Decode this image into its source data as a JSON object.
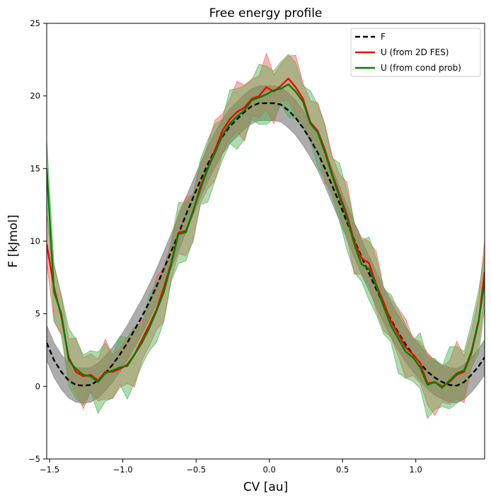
{
  "chart_data": {
    "type": "line",
    "title": "Free energy profile",
    "xlabel": "CV [au]",
    "ylabel": "F [kJmol]",
    "xlim": [
      -1.52,
      1.47
    ],
    "ylim": [
      -5,
      25
    ],
    "xticks": [
      -1.5,
      -1.0,
      -0.5,
      0.0,
      0.5,
      1.0
    ],
    "xtick_labels": [
      "−1.5",
      "−1.0",
      "−0.5",
      "0.0",
      "0.5",
      "1.0"
    ],
    "yticks": [
      -5,
      0,
      5,
      10,
      15,
      20,
      25
    ],
    "ytick_labels": [
      "−5",
      "0",
      "5",
      "10",
      "15",
      "20",
      "25"
    ],
    "legend_position": "top-right",
    "series": [
      {
        "name": "F",
        "style": "dashed",
        "color": "#000000",
        "band_color": "#808080",
        "x": [
          -1.52,
          -1.47,
          -1.42,
          -1.37,
          -1.32,
          -1.27,
          -1.22,
          -1.17,
          -1.12,
          -1.07,
          -1.02,
          -0.97,
          -0.92,
          -0.87,
          -0.82,
          -0.77,
          -0.72,
          -0.67,
          -0.62,
          -0.57,
          -0.52,
          -0.47,
          -0.42,
          -0.37,
          -0.32,
          -0.27,
          -0.22,
          -0.17,
          -0.12,
          -0.07,
          -0.02,
          0.03,
          0.08,
          0.13,
          0.18,
          0.23,
          0.28,
          0.33,
          0.38,
          0.43,
          0.48,
          0.53,
          0.58,
          0.63,
          0.68,
          0.73,
          0.78,
          0.83,
          0.88,
          0.93,
          0.98,
          1.03,
          1.08,
          1.13,
          1.18,
          1.23,
          1.28,
          1.33,
          1.38,
          1.43,
          1.47
        ],
        "y": [
          3.0,
          1.8,
          1.0,
          0.4,
          0.1,
          0.05,
          0.1,
          0.4,
          0.9,
          1.5,
          2.2,
          3.0,
          3.9,
          4.8,
          5.8,
          6.9,
          8.1,
          9.3,
          10.5,
          11.8,
          13.0,
          14.2,
          15.3,
          16.3,
          17.2,
          17.9,
          18.4,
          18.9,
          19.3,
          19.5,
          19.5,
          19.5,
          19.4,
          19.0,
          18.5,
          17.8,
          17.0,
          16.1,
          15.0,
          13.8,
          12.6,
          11.3,
          10.1,
          8.9,
          7.8,
          6.7,
          5.6,
          4.6,
          3.7,
          2.9,
          2.2,
          1.6,
          1.0,
          0.6,
          0.3,
          0.1,
          0.05,
          0.3,
          0.8,
          1.4,
          2.0
        ],
        "band": 1.2
      },
      {
        "name": "U (from 2D FES)",
        "style": "solid",
        "color": "#ff0000",
        "band_color": "#ff5555",
        "x": [
          -1.52,
          -1.47,
          -1.42,
          -1.37,
          -1.32,
          -1.27,
          -1.22,
          -1.17,
          -1.12,
          -1.07,
          -1.02,
          -0.97,
          -0.92,
          -0.87,
          -0.82,
          -0.77,
          -0.72,
          -0.67,
          -0.62,
          -0.57,
          -0.52,
          -0.47,
          -0.42,
          -0.37,
          -0.32,
          -0.27,
          -0.22,
          -0.17,
          -0.12,
          -0.07,
          -0.02,
          0.03,
          0.08,
          0.13,
          0.18,
          0.23,
          0.28,
          0.33,
          0.38,
          0.43,
          0.48,
          0.53,
          0.58,
          0.63,
          0.68,
          0.73,
          0.78,
          0.83,
          0.88,
          0.93,
          0.98,
          1.03,
          1.08,
          1.13,
          1.18,
          1.23,
          1.28,
          1.33,
          1.38,
          1.43,
          1.47
        ],
        "y": [
          9.8,
          6.8,
          4.8,
          2.0,
          1.0,
          0.7,
          0.8,
          0.4,
          1.0,
          1.0,
          1.2,
          1.5,
          2.2,
          3.2,
          4.2,
          5.3,
          6.8,
          8.5,
          10.6,
          10.7,
          12.0,
          13.8,
          15.0,
          16.3,
          17.6,
          18.4,
          18.9,
          19.2,
          19.8,
          20.0,
          20.6,
          20.3,
          20.7,
          21.2,
          20.6,
          19.8,
          18.2,
          17.6,
          16.3,
          14.6,
          13.2,
          11.8,
          10.0,
          8.8,
          8.5,
          7.0,
          5.8,
          4.5,
          3.6,
          2.7,
          2.2,
          1.6,
          0.2,
          0.3,
          0.0,
          0.3,
          0.8,
          1.0,
          2.3,
          4.5,
          7.9
        ],
        "band": 1.6
      },
      {
        "name": "U (from cond prob)",
        "style": "solid",
        "color": "#008000",
        "band_color": "#4caf50",
        "x": [
          -1.52,
          -1.47,
          -1.42,
          -1.37,
          -1.32,
          -1.27,
          -1.22,
          -1.17,
          -1.12,
          -1.07,
          -1.02,
          -0.97,
          -0.92,
          -0.87,
          -0.82,
          -0.77,
          -0.72,
          -0.67,
          -0.62,
          -0.57,
          -0.52,
          -0.47,
          -0.42,
          -0.37,
          -0.32,
          -0.27,
          -0.22,
          -0.17,
          -0.12,
          -0.07,
          -0.02,
          0.03,
          0.08,
          0.13,
          0.18,
          0.23,
          0.28,
          0.33,
          0.38,
          0.43,
          0.48,
          0.53,
          0.58,
          0.63,
          0.68,
          0.73,
          0.78,
          0.83,
          0.88,
          0.93,
          0.98,
          1.03,
          1.08,
          1.13,
          1.18,
          1.23,
          1.28,
          1.33,
          1.38,
          1.43,
          1.47
        ],
        "y": [
          15.0,
          6.5,
          5.0,
          1.8,
          1.2,
          0.8,
          0.7,
          0.3,
          0.9,
          1.1,
          1.3,
          1.4,
          2.2,
          3.0,
          4.0,
          5.2,
          6.5,
          8.4,
          10.5,
          10.6,
          12.1,
          13.6,
          15.0,
          16.1,
          17.3,
          18.1,
          18.6,
          19.0,
          19.7,
          19.9,
          20.1,
          20.4,
          20.5,
          20.8,
          20.3,
          19.6,
          18.1,
          17.5,
          16.1,
          14.5,
          13.0,
          11.6,
          9.8,
          8.4,
          8.1,
          6.9,
          5.5,
          4.2,
          3.3,
          2.4,
          2.0,
          1.3,
          0.1,
          0.3,
          -0.1,
          0.4,
          0.9,
          1.1,
          2.4,
          4.6,
          7.2
        ],
        "band": 1.8
      }
    ]
  }
}
